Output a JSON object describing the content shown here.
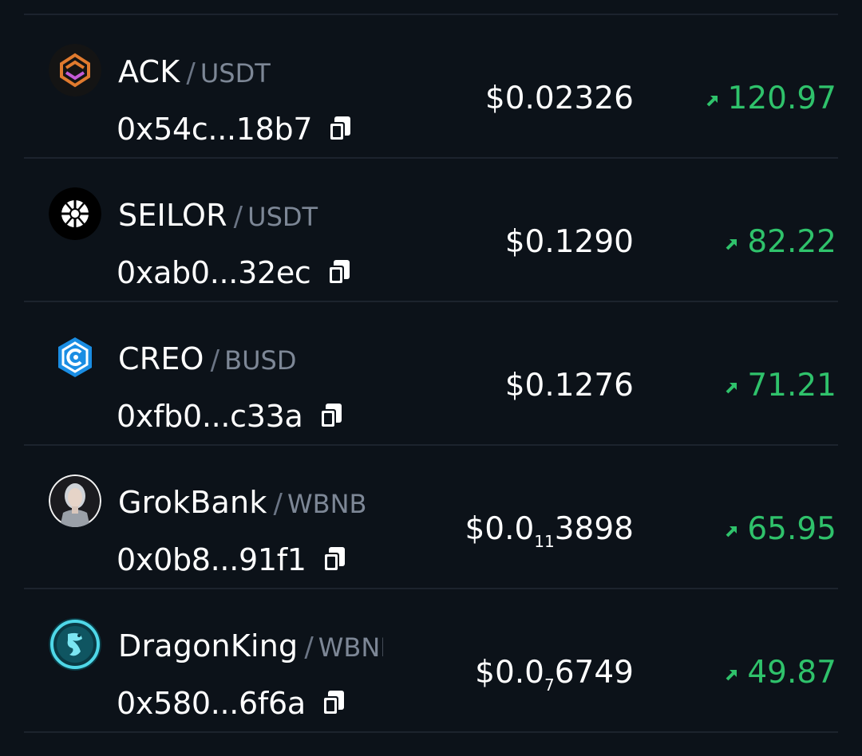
{
  "colors": {
    "background": "#0c1219",
    "positive": "#2fc26b",
    "quote_text": "#7d8796",
    "divider": "#1c232d"
  },
  "rows": [
    {
      "symbol": "ACK",
      "quote": "USDT",
      "address": "0x54c...18b7",
      "price": "$0.02326",
      "change": "120.97",
      "logo_icon": "ack-logo-icon"
    },
    {
      "symbol": "SEILOR",
      "quote": "USDT",
      "address": "0xab0...32ec",
      "price": "$0.1290",
      "change": "82.22",
      "logo_icon": "seilor-logo-icon"
    },
    {
      "symbol": "CREO",
      "quote": "BUSD",
      "address": "0xfb0...c33a",
      "price": "$0.1276",
      "change": "71.21",
      "logo_icon": "creo-logo-icon"
    },
    {
      "symbol": "GrokBank",
      "quote": "WBNB",
      "address": "0x0b8...91f1",
      "price_main": "$0.0",
      "price_zero_count": "11",
      "price_rest": "3898",
      "change": "65.95",
      "logo_icon": "grokbank-logo-icon"
    },
    {
      "symbol": "DragonKing",
      "quote": "WBNB",
      "address": "0x580...6f6a",
      "price_main": "$0.0",
      "price_zero_count": "7",
      "price_rest": "6749",
      "change": "49.87",
      "logo_icon": "dragonking-logo-icon"
    }
  ]
}
